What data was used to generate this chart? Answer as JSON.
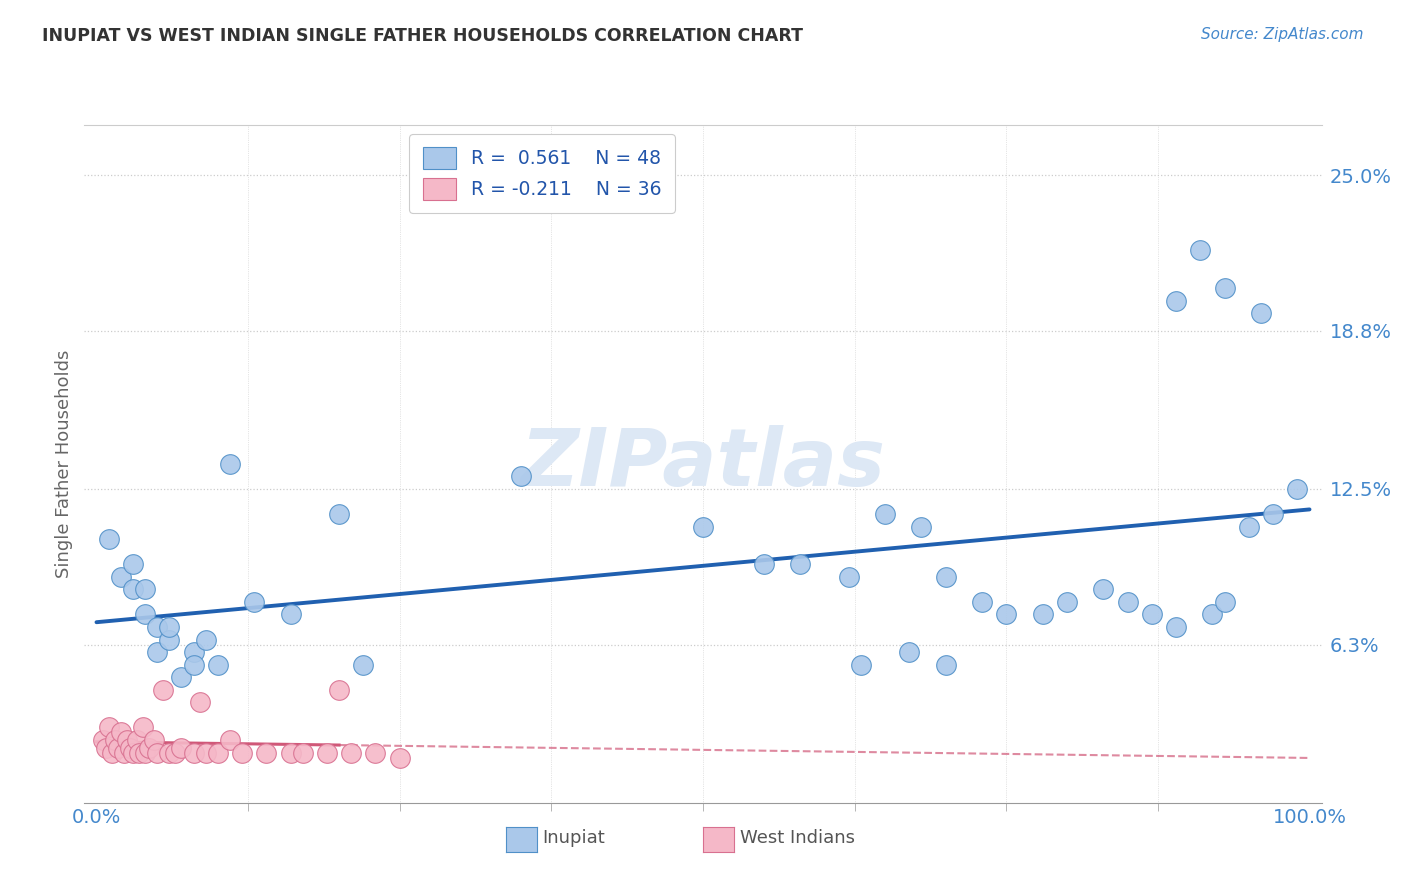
{
  "title": "INUPIAT VS WEST INDIAN SINGLE FATHER HOUSEHOLDS CORRELATION CHART",
  "source": "Source: ZipAtlas.com",
  "ylabel": "Single Father Households",
  "inupiat_color": "#aac8ea",
  "inupiat_edge_color": "#5090c8",
  "westindian_color": "#f5b8c8",
  "westindian_edge_color": "#d87090",
  "inupiat_line_color": "#2060b0",
  "westindian_line_color": "#d05878",
  "background_color": "#ffffff",
  "grid_color": "#cccccc",
  "ytick_color": "#4488cc",
  "xtick_color": "#4488cc",
  "watermark_color": "#dde8f5",
  "title_color": "#333333",
  "source_color": "#4488cc",
  "legend_text_color": "#2255aa",
  "inupiat_x": [
    1,
    2,
    3,
    3,
    4,
    4,
    5,
    5,
    6,
    6,
    7,
    8,
    8,
    9,
    10,
    11,
    13,
    16,
    20,
    22,
    35,
    50,
    55,
    58,
    62,
    65,
    68,
    70,
    73,
    75,
    78,
    80,
    83,
    85,
    87,
    89,
    92,
    93,
    95,
    97,
    63,
    67,
    70,
    89,
    91,
    93,
    96,
    99
  ],
  "inupiat_y": [
    10.5,
    9.0,
    8.5,
    9.5,
    8.5,
    7.5,
    6.0,
    7.0,
    6.5,
    7.0,
    5.0,
    6.0,
    5.5,
    6.5,
    5.5,
    13.5,
    8.0,
    7.5,
    11.5,
    5.5,
    13.0,
    11.0,
    9.5,
    9.5,
    9.0,
    11.5,
    11.0,
    9.0,
    8.0,
    7.5,
    7.5,
    8.0,
    8.5,
    8.0,
    7.5,
    7.0,
    7.5,
    8.0,
    11.0,
    11.5,
    5.5,
    6.0,
    5.5,
    20.0,
    22.0,
    20.5,
    19.5,
    12.5
  ],
  "westindian_x": [
    0.5,
    0.8,
    1.0,
    1.3,
    1.5,
    1.8,
    2.0,
    2.3,
    2.5,
    2.8,
    3.0,
    3.3,
    3.5,
    3.8,
    4.0,
    4.3,
    4.7,
    5.0,
    5.5,
    6.0,
    6.5,
    7.0,
    8.0,
    8.5,
    9.0,
    10.0,
    11.0,
    12.0,
    14.0,
    16.0,
    17.0,
    19.0,
    20.0,
    21.0,
    23.0,
    25.0
  ],
  "westindian_y": [
    2.5,
    2.2,
    3.0,
    2.0,
    2.5,
    2.2,
    2.8,
    2.0,
    2.5,
    2.2,
    2.0,
    2.5,
    2.0,
    3.0,
    2.0,
    2.2,
    2.5,
    2.0,
    4.5,
    2.0,
    2.0,
    2.2,
    2.0,
    4.0,
    2.0,
    2.0,
    2.5,
    2.0,
    2.0,
    2.0,
    2.0,
    2.0,
    4.5,
    2.0,
    2.0,
    1.8
  ],
  "inupiat_r": 0.561,
  "inupiat_n": 48,
  "westindian_r": -0.211,
  "westindian_n": 36,
  "xmin": 0,
  "xmax": 100,
  "ymin": 0,
  "ymax": 27,
  "yticks": [
    6.3,
    12.5,
    18.8,
    25.0
  ],
  "ytick_labels": [
    "6.3%",
    "12.5%",
    "18.8%",
    "25.0%"
  ],
  "xtick_left": "0.0%",
  "xtick_right": "100.0%"
}
